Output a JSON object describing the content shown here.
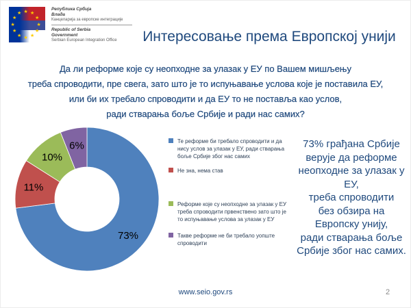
{
  "slide": {
    "title": "Интересовање према Европској унији",
    "footer_url": "www.seio.gov.rs",
    "page_number": "2"
  },
  "logo": {
    "sr": [
      "Република Србија",
      "Влада",
      "Канцеларија за европске интеграције"
    ],
    "en": [
      "Republic of Serbia",
      "Government",
      "Serbian European Integration Office"
    ]
  },
  "question": {
    "lines": [
      "Да ли реформе  које су неопходне за улазак у ЕУ по Вашем мишљењу",
      "треба спроводити, пре свега, зато што је то испуњавање услова које је поставила ЕУ,",
      "или би их требало спроводити и да ЕУ то не поставља као услов,",
      "ради стварања боље Србије и ради нас самих?"
    ]
  },
  "chart_data": {
    "type": "pie",
    "subtype": "doughnut",
    "title": "",
    "values": [
      73,
      11,
      10,
      6
    ],
    "unit": "%",
    "display_labels": [
      "73%",
      "11%",
      "10%",
      "6%"
    ],
    "labels": [
      "Те реформе би требало спроводити и да нису услов за улазак у ЕУ, ради стварања боље Србије због нас самих",
      "Не зна, нема став",
      "Реформе које су неопходне за улазак у ЕУ треба спроводити првенствено зато што је то испуњавање услова за улазак у ЕУ",
      "Такве реформе не би требало уопште спроводити"
    ],
    "colors": [
      "#4F81BD",
      "#C0504D",
      "#9BBB59",
      "#8064A2"
    ],
    "start_angle_deg": 0,
    "direction": "clockwise",
    "hole_ratio": 0.45,
    "legend_position": "right"
  },
  "callout": {
    "lines": [
      "73% грађана Србије",
      "верује да реформе",
      "неопходне за улазак у",
      "ЕУ,",
      "треба спроводити",
      "без обзира на",
      "Европску унију,",
      "ради стварања боље",
      "Србије због нас самих."
    ]
  },
  "colors": {
    "title_text": "#1F497D",
    "body_text": "#1F497D",
    "legend_text": "#2E4057",
    "slice_label": "#000000",
    "page_number": "#8A8A8A",
    "eu_blue": "#003399",
    "flag_red": "#C1232B",
    "flag_blue": "#3D4D97",
    "star_yellow": "#FFCC00"
  }
}
